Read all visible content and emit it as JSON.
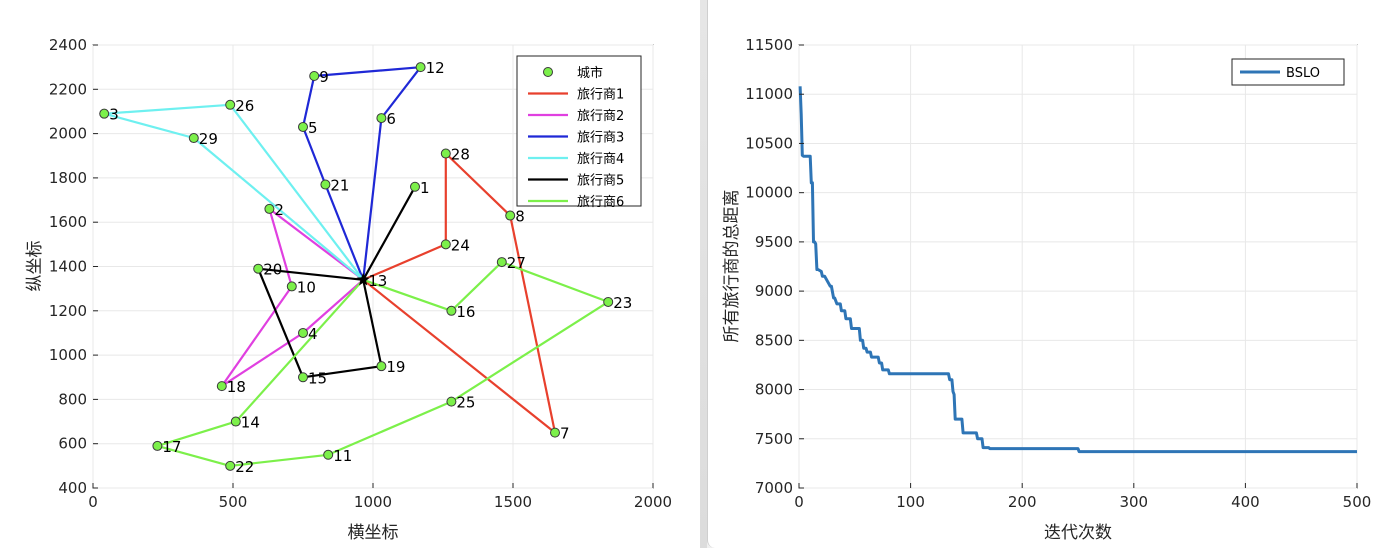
{
  "chart_data": [
    {
      "type": "scatter",
      "xlabel": "横坐标",
      "ylabel": "纵坐标",
      "xlim": [
        0,
        2000
      ],
      "ylim": [
        400,
        2400
      ],
      "xticks": [
        0,
        500,
        1000,
        1500,
        2000
      ],
      "yticks": [
        400,
        600,
        800,
        1000,
        1200,
        1400,
        1600,
        1800,
        2000,
        2200,
        2400
      ],
      "depot": {
        "label": "13",
        "x": 965,
        "y": 1340
      },
      "cities": [
        {
          "label": "1",
          "x": 1150,
          "y": 1760
        },
        {
          "label": "2",
          "x": 630,
          "y": 1660
        },
        {
          "label": "3",
          "x": 40,
          "y": 2090
        },
        {
          "label": "4",
          "x": 750,
          "y": 1100
        },
        {
          "label": "5",
          "x": 750,
          "y": 2030
        },
        {
          "label": "6",
          "x": 1030,
          "y": 2070
        },
        {
          "label": "7",
          "x": 1650,
          "y": 650
        },
        {
          "label": "8",
          "x": 1490,
          "y": 1630
        },
        {
          "label": "9",
          "x": 790,
          "y": 2260
        },
        {
          "label": "10",
          "x": 710,
          "y": 1310
        },
        {
          "label": "11",
          "x": 840,
          "y": 550
        },
        {
          "label": "12",
          "x": 1170,
          "y": 2300
        },
        {
          "label": "14",
          "x": 510,
          "y": 700
        },
        {
          "label": "15",
          "x": 750,
          "y": 900
        },
        {
          "label": "16",
          "x": 1280,
          "y": 1200
        },
        {
          "label": "17",
          "x": 230,
          "y": 590
        },
        {
          "label": "18",
          "x": 460,
          "y": 860
        },
        {
          "label": "19",
          "x": 1030,
          "y": 950
        },
        {
          "label": "20",
          "x": 590,
          "y": 1390
        },
        {
          "label": "21",
          "x": 830,
          "y": 1770
        },
        {
          "label": "22",
          "x": 490,
          "y": 500
        },
        {
          "label": "23",
          "x": 1840,
          "y": 1240
        },
        {
          "label": "24",
          "x": 1260,
          "y": 1500
        },
        {
          "label": "25",
          "x": 1280,
          "y": 790
        },
        {
          "label": "26",
          "x": 490,
          "y": 2130
        },
        {
          "label": "27",
          "x": 1460,
          "y": 1420
        },
        {
          "label": "28",
          "x": 1260,
          "y": 1910
        },
        {
          "label": "29",
          "x": 360,
          "y": 1980
        }
      ],
      "routes": [
        {
          "name": "旅行商1",
          "color": "#e8402d",
          "path": [
            "13",
            "24",
            "28",
            "8",
            "7",
            "13"
          ]
        },
        {
          "name": "旅行商2",
          "color": "#e040e0",
          "path": [
            "13",
            "2",
            "10",
            "18",
            "4",
            "13"
          ]
        },
        {
          "name": "旅行商3",
          "color": "#1f28d6",
          "path": [
            "13",
            "6",
            "12",
            "9",
            "5",
            "21",
            "13"
          ]
        },
        {
          "name": "旅行商4",
          "color": "#6ef0f0",
          "path": [
            "13",
            "26",
            "3",
            "29",
            "13"
          ]
        },
        {
          "name": "旅行商5",
          "color": "#000000",
          "path": [
            "13",
            "1",
            "13",
            "20",
            "15",
            "19",
            "13"
          ]
        },
        {
          "name": "旅行商6",
          "color": "#7cf04a",
          "path": [
            "13",
            "16",
            "27",
            "23",
            "25",
            "11",
            "22",
            "17",
            "14",
            "13"
          ]
        }
      ],
      "legend": {
        "position": "top-right",
        "city_label": "城市",
        "city_color": "#7cf04a"
      }
    },
    {
      "type": "line",
      "xlabel": "迭代次数",
      "ylabel": "所有旅行商的总距离",
      "xlim": [
        0,
        500
      ],
      "ylim": [
        7000,
        11500
      ],
      "xticks": [
        0,
        100,
        200,
        300,
        400,
        500
      ],
      "yticks": [
        7000,
        7500,
        8000,
        8500,
        9000,
        9500,
        10000,
        10500,
        11000,
        11500
      ],
      "legend": {
        "position": "top-right"
      },
      "series": [
        {
          "name": "BSLO",
          "color": "#2e75b6",
          "x": [
            1,
            2,
            3,
            4,
            10,
            11,
            12,
            13,
            14,
            15,
            16,
            17,
            20,
            21,
            23,
            28,
            29,
            31,
            32,
            34,
            37,
            38,
            41,
            42,
            46,
            47,
            54,
            55,
            57,
            58,
            60,
            61,
            64,
            65,
            71,
            72,
            74,
            75,
            80,
            81,
            134,
            135,
            137,
            138,
            139,
            140,
            146,
            147,
            159,
            160,
            164,
            165,
            170,
            171,
            250,
            251,
            500
          ],
          "values": [
            11080,
            10800,
            10380,
            10370,
            10370,
            10100,
            10100,
            9500,
            9500,
            9480,
            9220,
            9220,
            9200,
            9150,
            9150,
            9050,
            9050,
            8930,
            8930,
            8870,
            8870,
            8800,
            8800,
            8720,
            8720,
            8620,
            8620,
            8500,
            8500,
            8420,
            8420,
            8380,
            8380,
            8330,
            8330,
            8270,
            8270,
            8200,
            8200,
            8160,
            8160,
            8100,
            8100,
            7980,
            7950,
            7700,
            7700,
            7560,
            7560,
            7500,
            7500,
            7410,
            7410,
            7400,
            7400,
            7370,
            7370
          ]
        }
      ]
    }
  ]
}
